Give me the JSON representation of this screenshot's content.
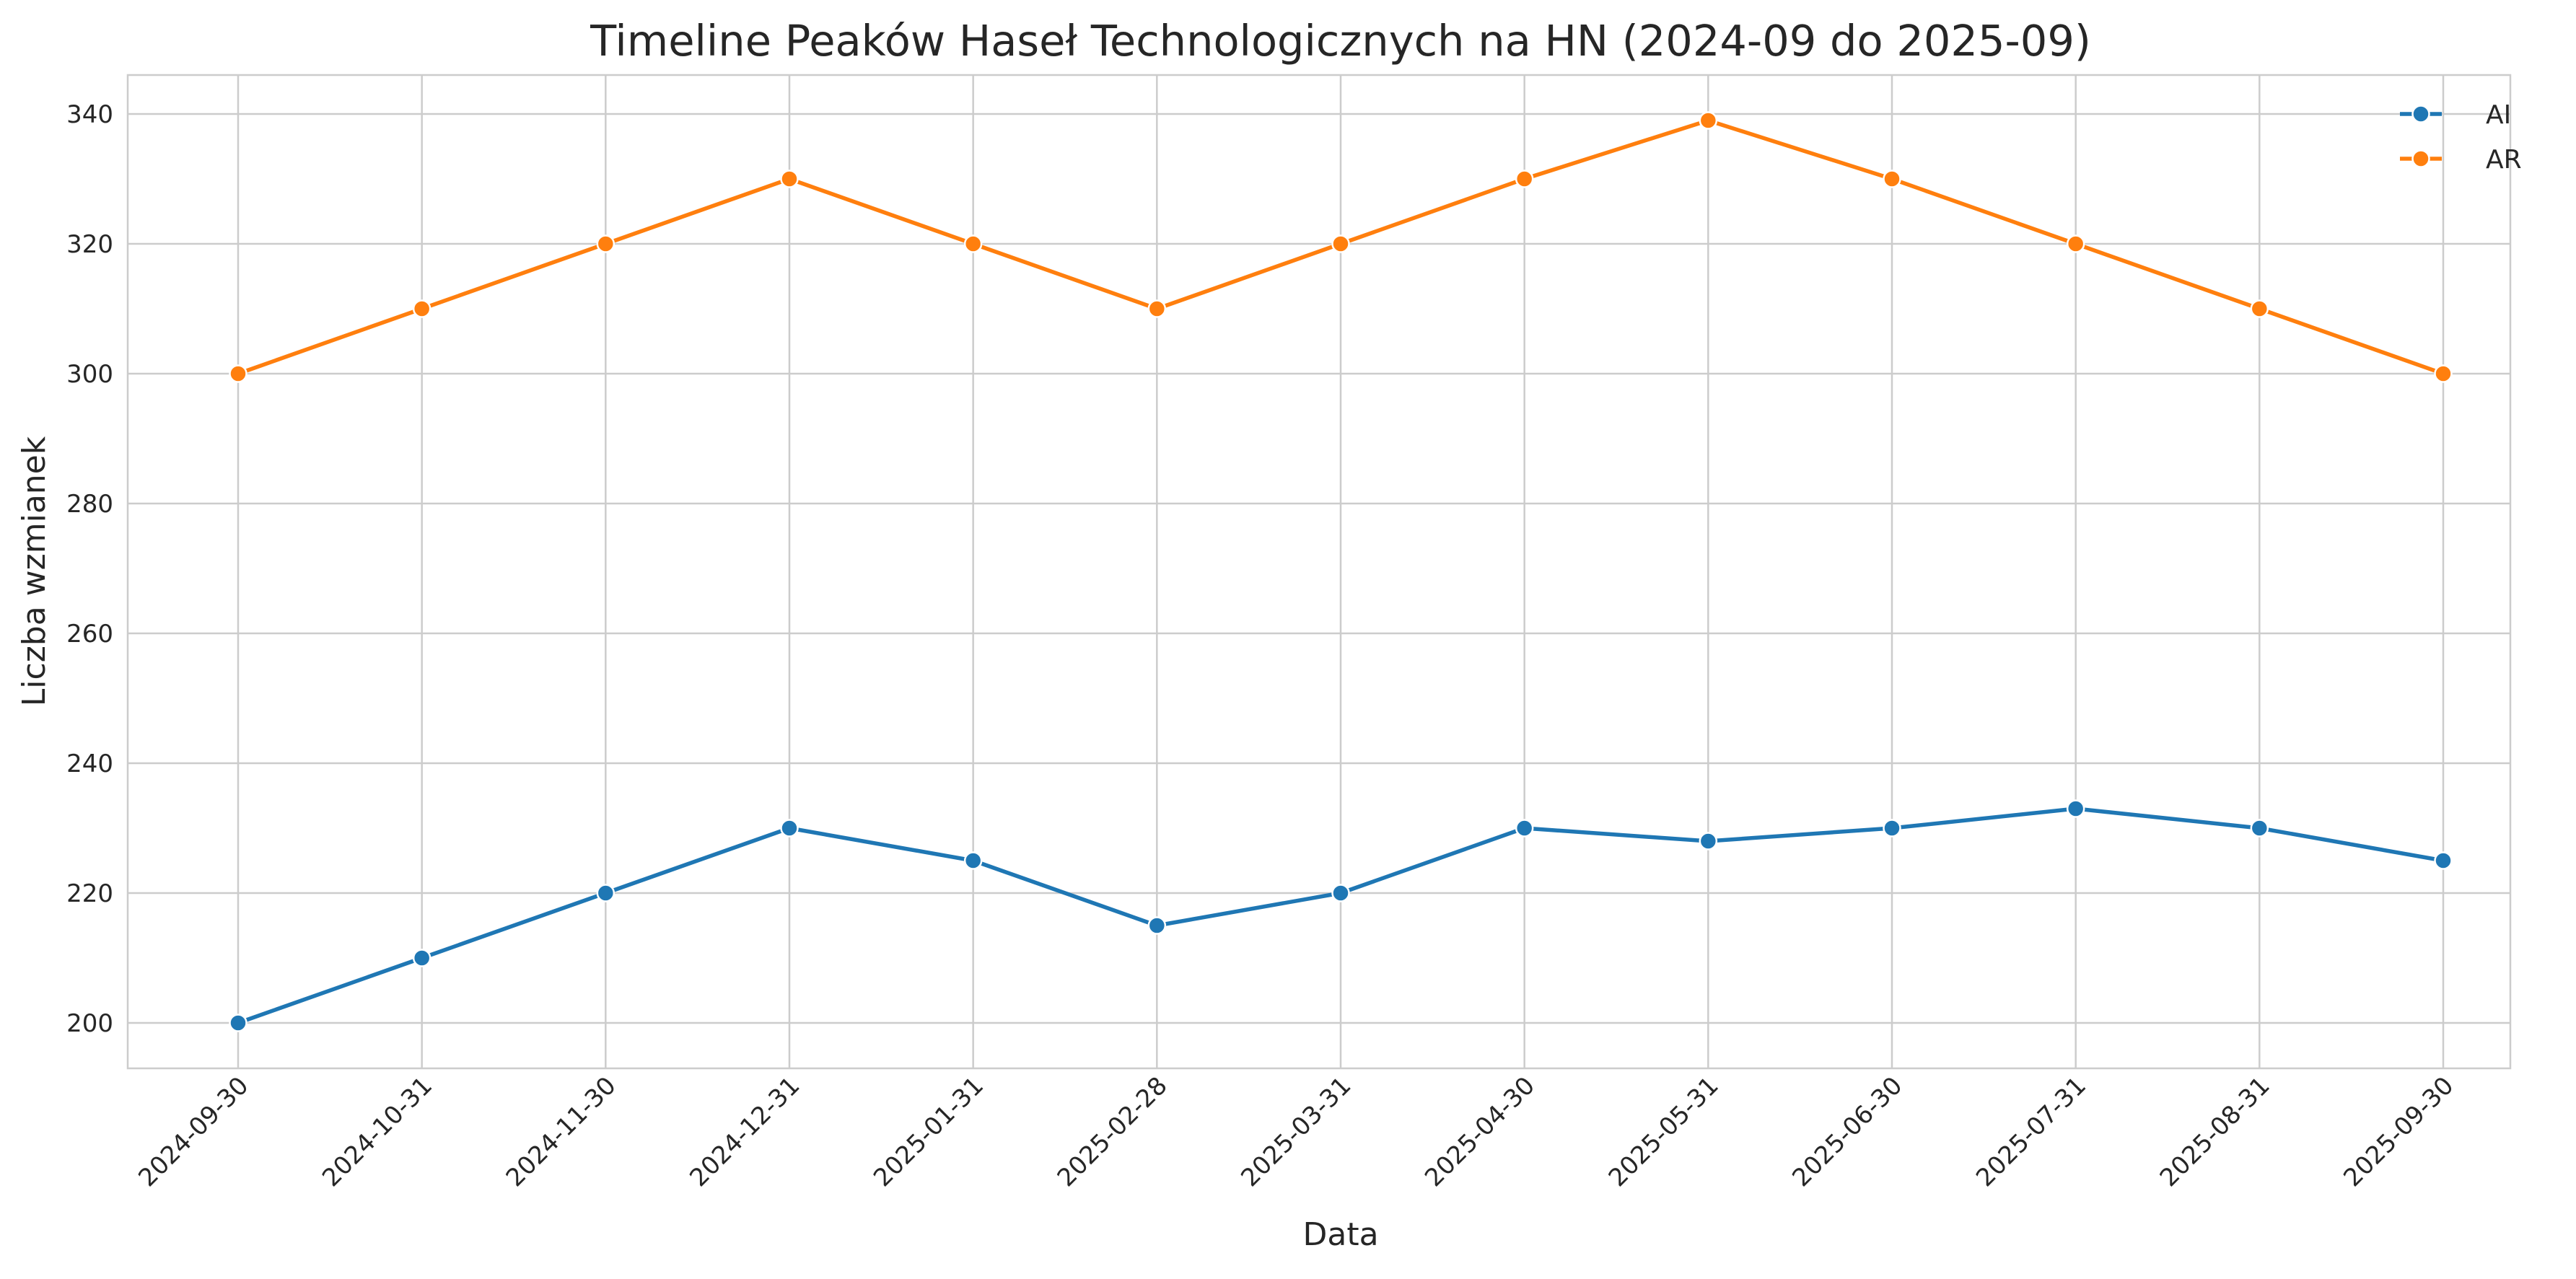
{
  "chart_data": {
    "type": "line",
    "title": "Timeline Peaków Haseł Technologicznych na HN (2024-09 do 2025-09)",
    "xlabel": "Data",
    "ylabel": "Liczba wzmianek",
    "x": [
      "2024-09-30",
      "2024-10-31",
      "2024-11-30",
      "2024-12-31",
      "2025-01-31",
      "2025-02-28",
      "2025-03-31",
      "2025-04-30",
      "2025-05-31",
      "2025-06-30",
      "2025-07-31",
      "2025-08-31",
      "2025-09-30"
    ],
    "yticks": [
      200,
      220,
      240,
      260,
      280,
      300,
      320,
      340
    ],
    "ylim": [
      193,
      346
    ],
    "grid": true,
    "legend_position": "top-right",
    "series": [
      {
        "name": "AI",
        "color": "#1f77b4",
        "marker": "circle",
        "values": [
          200,
          210,
          220,
          230,
          225,
          215,
          220,
          230,
          228,
          230,
          233,
          230,
          225
        ]
      },
      {
        "name": "AR",
        "color": "#ff7f0e",
        "marker": "circle",
        "values": [
          300,
          310,
          320,
          330,
          320,
          310,
          320,
          330,
          339,
          330,
          320,
          310,
          300
        ]
      }
    ]
  }
}
